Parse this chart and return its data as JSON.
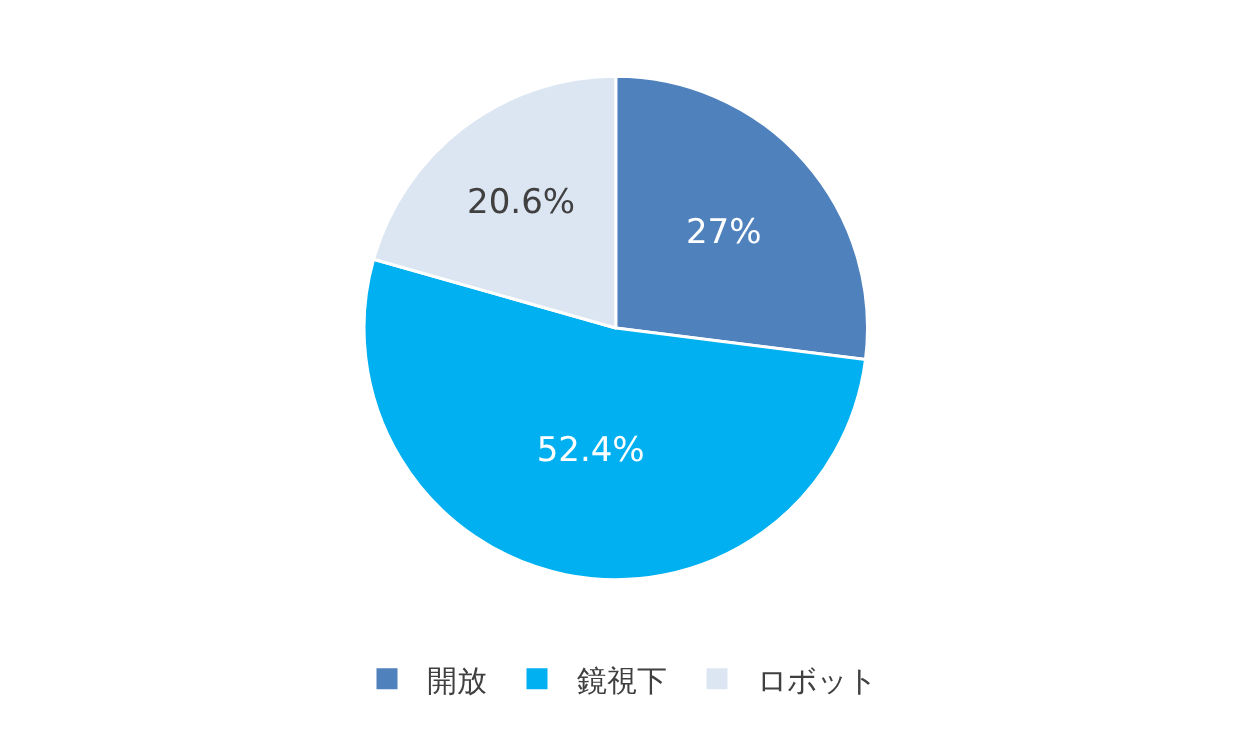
{
  "chart_data": {
    "type": "pie",
    "categories": [
      "開放",
      "鏡視下",
      "ロボット"
    ],
    "values": [
      27,
      52.4,
      20.6
    ],
    "colors": [
      "#4f81bd",
      "#00b0f0",
      "#dce6f2"
    ],
    "value_labels": [
      "27%",
      "52.4%",
      "20.6%"
    ],
    "legend": "bottom"
  }
}
